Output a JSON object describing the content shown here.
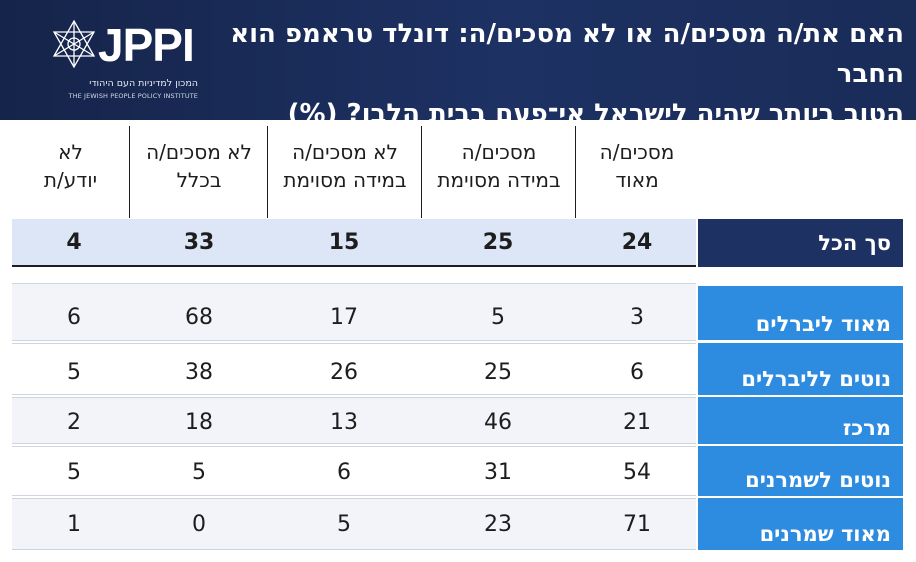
{
  "header": {
    "logo_text": "JPPI",
    "logo_subtitle_he": "המכון למדיניות העם היהודי",
    "logo_subtitle_en": "THE JEWISH PEOPLE POLICY INSTITUTE",
    "title_line1": "האם את/ה מסכים/ה או לא מסכים/ה: דונלד טראמפ הוא החבר",
    "title_line2": "הטוב ביותר שהיה לישראל אי־פעם בבית הלבן? (%)"
  },
  "columns": [
    {
      "line1": "מסכים/ה",
      "line2": "מאוד"
    },
    {
      "line1": "מסכים/ה",
      "line2": "במידה מסוימת"
    },
    {
      "line1": "לא מסכים/ה",
      "line2": "במידה מסוימת"
    },
    {
      "line1": "לא מסכים/ה",
      "line2": "בכלל"
    },
    {
      "line1": "לא",
      "line2": "יודע/ת"
    }
  ],
  "total": {
    "label": "סך הכל",
    "values": [
      "24",
      "25",
      "15",
      "33",
      "4"
    ]
  },
  "rows": [
    {
      "label": "מאוד ליברלים",
      "values": [
        "3",
        "5",
        "17",
        "68",
        "6"
      ]
    },
    {
      "label": "נוטים לליברלים",
      "values": [
        "6",
        "25",
        "26",
        "38",
        "5"
      ]
    },
    {
      "label": "מרכז",
      "values": [
        "21",
        "46",
        "13",
        "18",
        "2"
      ]
    },
    {
      "label": "נוטים לשמרנים",
      "values": [
        "54",
        "31",
        "6",
        "5",
        "5"
      ]
    },
    {
      "label": "מאוד שמרנים",
      "values": [
        "71",
        "23",
        "5",
        "0",
        "1"
      ]
    }
  ],
  "colors": {
    "header_bg": "#1a2c58",
    "total_label_bg": "#1d3163",
    "row_label_bg": "#2d8be0",
    "total_row_bg": "#dde6f7",
    "row_band_bg": "#f2f4f9"
  }
}
